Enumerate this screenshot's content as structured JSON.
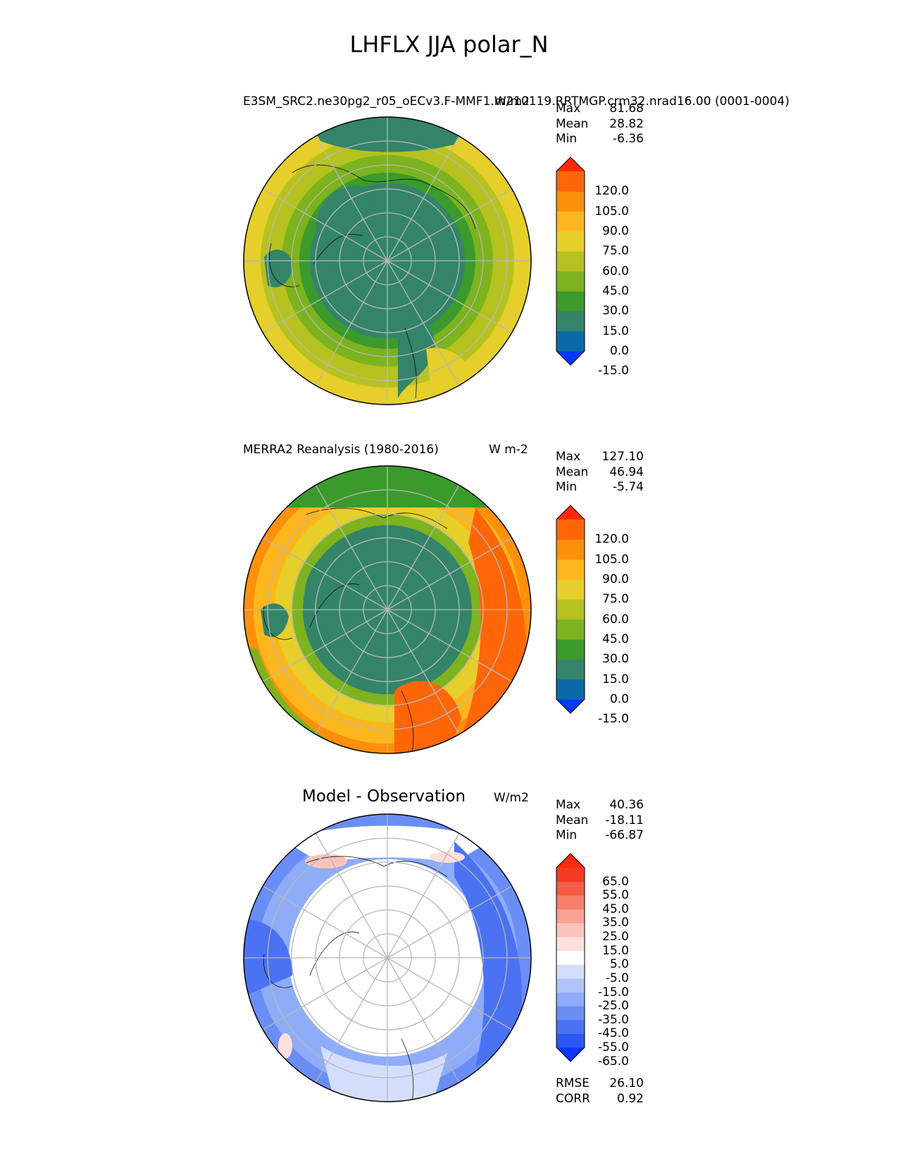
{
  "figure_title": "LHFLX JJA polar_N",
  "panels": [
    {
      "title_left": "E3SM_SRC2.ne30pg2_r05_oECv3.F-MMF1.m210119.RRTMGP.crm32.nrad16.00 (0001-0004)",
      "units": "W/m2",
      "stats": [
        {
          "label": "Max",
          "value": "81.68"
        },
        {
          "label": "Mean",
          "value": "28.82"
        },
        {
          "label": "Min",
          "value": "-6.36"
        }
      ],
      "colorbar": {
        "ticks": [
          "120.0",
          "105.0",
          "90.0",
          "75.0",
          "60.0",
          "45.0",
          "30.0",
          "15.0",
          "0.0",
          "-15.0"
        ],
        "colors": [
          "#0039ff",
          "#0a6aa8",
          "#338469",
          "#3b9a2c",
          "#7cb31e",
          "#b5c21f",
          "#e6cf2a",
          "#fdb71c",
          "#fe900b",
          "#ff6608",
          "#ff2a0a"
        ]
      }
    },
    {
      "title_left": "MERRA2 Reanalysis (1980-2016)",
      "units": "W m-2",
      "stats": [
        {
          "label": "Max",
          "value": "127.10"
        },
        {
          "label": "Mean",
          "value": "46.94"
        },
        {
          "label": "Min",
          "value": "-5.74"
        }
      ],
      "colorbar": {
        "ticks": [
          "120.0",
          "105.0",
          "90.0",
          "75.0",
          "60.0",
          "45.0",
          "30.0",
          "15.0",
          "0.0",
          "-15.0"
        ],
        "colors": [
          "#0039ff",
          "#0a6aa8",
          "#338469",
          "#3b9a2c",
          "#7cb31e",
          "#b5c21f",
          "#e6cf2a",
          "#fdb71c",
          "#fe900b",
          "#ff6608",
          "#ff2a0a"
        ]
      }
    },
    {
      "title_left": "Model - Observation",
      "units": "W/m2",
      "stats": [
        {
          "label": "Max",
          "value": "40.36"
        },
        {
          "label": "Mean",
          "value": "-18.11"
        },
        {
          "label": "Min",
          "value": "-66.87"
        }
      ],
      "colorbar": {
        "ticks": [
          "65.0",
          "55.0",
          "45.0",
          "35.0",
          "25.0",
          "15.0",
          "5.0",
          "-5.0",
          "-15.0",
          "-25.0",
          "-35.0",
          "-45.0",
          "-55.0",
          "-65.0"
        ],
        "colors": [
          "#0a36ff",
          "#2b58f5",
          "#4a72f2",
          "#6a8ef5",
          "#8eacf8",
          "#b1c5fa",
          "#d4defc",
          "#ffffff",
          "#fde0dc",
          "#fbc3bb",
          "#f8a394",
          "#f6806c",
          "#f45c45",
          "#f43a22",
          "#ff2a0a"
        ]
      },
      "metrics": [
        {
          "label": "RMSE",
          "value": "26.10"
        },
        {
          "label": "CORR",
          "value": "0.92"
        }
      ]
    }
  ]
}
